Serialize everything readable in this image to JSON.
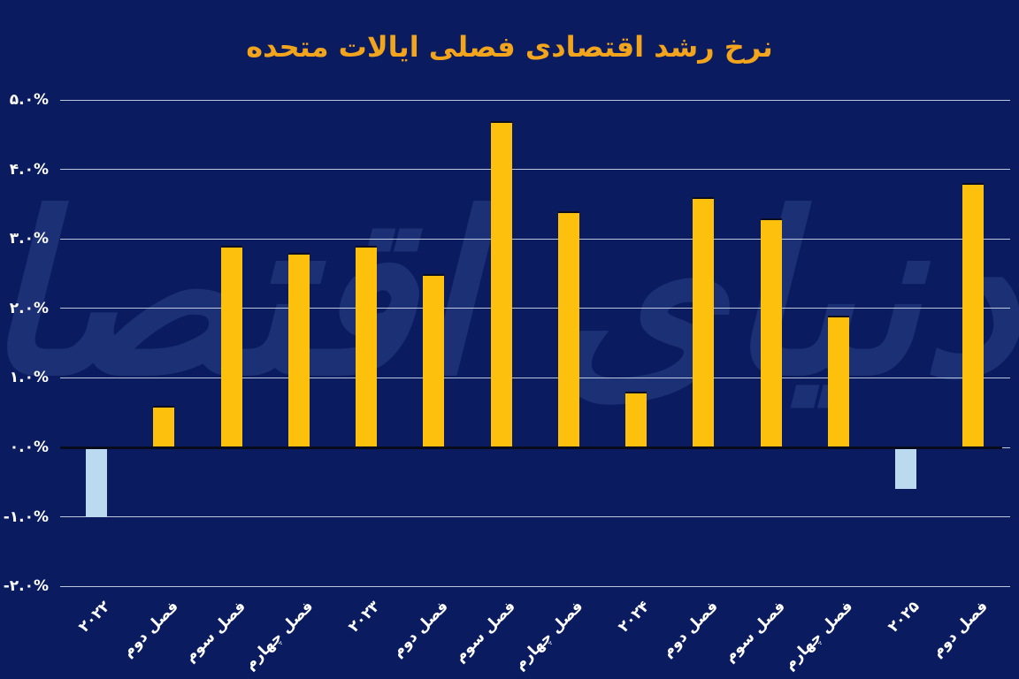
{
  "title": "نرخ رشد اقتصادی فصلی ایالات متحده",
  "watermark": "دنیای اقتصاد",
  "colors": {
    "background": "#0a1c5f",
    "title": "#f2a51c",
    "bar_positive": "#fcc00d",
    "bar_negative": "#bcdaef",
    "gridline": "#dce4f2",
    "zero_line": "#070b1c",
    "tick_text": "#ffffff",
    "watermark": "#1c3075"
  },
  "chart_data": {
    "type": "bar",
    "title": "نرخ رشد اقتصادی فصلی ایالات متحده",
    "xlabel": "",
    "ylabel": "",
    "grid": true,
    "legend_position": "none",
    "ylim": [
      -2.5,
      5.4
    ],
    "categories": [
      "۲۰۲۲",
      "فصل دوم",
      "فصل سوم",
      "فصل چهارم",
      "۲۰۲۳",
      "فصل دوم",
      "فصل سوم",
      "فصل چهارم",
      "۲۰۲۴",
      "فصل دوم",
      "فصل سوم",
      "فصل چهارم",
      "۲۰۲۵",
      "فصل دوم"
    ],
    "values": [
      -1.0,
      0.6,
      2.9,
      2.8,
      2.9,
      2.5,
      4.7,
      3.4,
      0.8,
      3.6,
      3.3,
      1.9,
      -0.6,
      3.8
    ],
    "y_ticks": [
      {
        "value": 5,
        "label": "۵.۰%"
      },
      {
        "value": 4,
        "label": "۴.۰%"
      },
      {
        "value": 3,
        "label": "۳.۰%"
      },
      {
        "value": 2,
        "label": "۲.۰%"
      },
      {
        "value": 1,
        "label": "۱.۰%"
      },
      {
        "value": 0,
        "label": "۰.۰%"
      },
      {
        "value": -1,
        "label": "-۱.۰%"
      },
      {
        "value": -2,
        "label": "-۲.۰%"
      }
    ]
  }
}
